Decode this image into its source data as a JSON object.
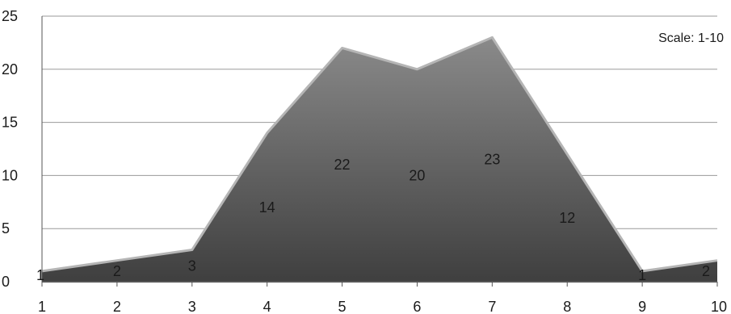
{
  "chart_data": {
    "type": "area",
    "title": "",
    "xlabel": "",
    "ylabel": "",
    "x": [
      1,
      2,
      3,
      4,
      5,
      6,
      7,
      8,
      9,
      10
    ],
    "series": [
      {
        "values": [
          1,
          2,
          3,
          14,
          22,
          20,
          23,
          12,
          1,
          2
        ]
      }
    ],
    "xlim": [
      1,
      10
    ],
    "ylim": [
      0,
      25
    ],
    "y_ticks": [
      0,
      5,
      10,
      15,
      20,
      25
    ],
    "x_ticks": [
      1,
      2,
      3,
      4,
      5,
      6,
      7,
      8,
      9,
      10
    ],
    "grid": "horizontal",
    "annotation": "Scale: 1-10",
    "annotation_position": "top-right",
    "colors": {
      "area_light": "#8a8a8a",
      "area_dark": "#3f3f3f",
      "outline": "#b5b5b5",
      "grid": "#9a9a9a",
      "axis": "#555555"
    }
  }
}
